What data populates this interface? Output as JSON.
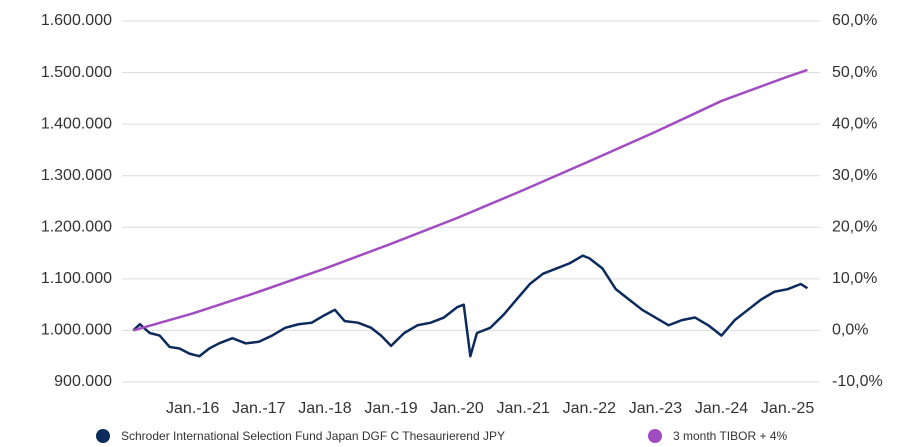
{
  "chart_data": {
    "type": "line",
    "xlim": [
      2014.93,
      2025.49
    ],
    "xticks": [
      {
        "value": 2016,
        "label": "Jan.-16"
      },
      {
        "value": 2017,
        "label": "Jan.-17"
      },
      {
        "value": 2018,
        "label": "Jan.-18"
      },
      {
        "value": 2019,
        "label": "Jan.-19"
      },
      {
        "value": 2020,
        "label": "Jan.-20"
      },
      {
        "value": 2021,
        "label": "Jan.-21"
      },
      {
        "value": 2022,
        "label": "Jan.-22"
      },
      {
        "value": 2023,
        "label": "Jan.-23"
      },
      {
        "value": 2024,
        "label": "Jan.-24"
      },
      {
        "value": 2025,
        "label": "Jan.-25"
      }
    ],
    "ylim": [
      900000,
      1600000
    ],
    "yticks": [
      {
        "value": 900000,
        "label": "900.000"
      },
      {
        "value": 1000000,
        "label": "1.000.000"
      },
      {
        "value": 1100000,
        "label": "1.100.000"
      },
      {
        "value": 1200000,
        "label": "1.200.000"
      },
      {
        "value": 1300000,
        "label": "1.300.000"
      },
      {
        "value": 1400000,
        "label": "1.400.000"
      },
      {
        "value": 1500000,
        "label": "1.500.000"
      },
      {
        "value": 1600000,
        "label": "1.600.000"
      }
    ],
    "y2lim": [
      -10,
      60
    ],
    "y2ticks": [
      {
        "value": -10,
        "label": "-10,0%"
      },
      {
        "value": 0,
        "label": "0,0%"
      },
      {
        "value": 10,
        "label": "10,0%"
      },
      {
        "value": 20,
        "label": "20,0%"
      },
      {
        "value": 30,
        "label": "30,0%"
      },
      {
        "value": 40,
        "label": "40,0%"
      },
      {
        "value": 50,
        "label": "50,0%"
      },
      {
        "value": 60,
        "label": "60,0%"
      }
    ],
    "grid": true,
    "legend": "bottom",
    "series": [
      {
        "name": "Schroder International Selection Fund Japan DGF C Thesaurierend JPY",
        "color": "#0d2a5c",
        "x": [
          2015.1,
          2015.2,
          2015.35,
          2015.5,
          2015.65,
          2015.8,
          2015.95,
          2016.1,
          2016.25,
          2016.4,
          2016.6,
          2016.8,
          2017.0,
          2017.2,
          2017.4,
          2017.6,
          2017.8,
          2018.0,
          2018.15,
          2018.3,
          2018.5,
          2018.7,
          2018.85,
          2019.0,
          2019.2,
          2019.4,
          2019.6,
          2019.8,
          2020.0,
          2020.1,
          2020.2,
          2020.3,
          2020.5,
          2020.7,
          2020.9,
          2021.1,
          2021.3,
          2021.5,
          2021.7,
          2021.9,
          2022.0,
          2022.2,
          2022.4,
          2022.6,
          2022.8,
          2023.0,
          2023.2,
          2023.4,
          2023.6,
          2023.8,
          2024.0,
          2024.2,
          2024.4,
          2024.6,
          2024.8,
          2025.0,
          2025.2,
          2025.3
        ],
        "values": [
          1000000,
          1012000,
          995000,
          990000,
          968000,
          965000,
          955000,
          950000,
          965000,
          975000,
          985000,
          975000,
          978000,
          990000,
          1005000,
          1012000,
          1015000,
          1030000,
          1040000,
          1018000,
          1015000,
          1005000,
          990000,
          970000,
          995000,
          1010000,
          1015000,
          1025000,
          1045000,
          1050000,
          950000,
          995000,
          1005000,
          1030000,
          1060000,
          1090000,
          1110000,
          1120000,
          1130000,
          1145000,
          1140000,
          1120000,
          1080000,
          1060000,
          1040000,
          1025000,
          1010000,
          1020000,
          1025000,
          1010000,
          990000,
          1020000,
          1040000,
          1060000,
          1075000,
          1080000,
          1090000,
          1082000
        ]
      },
      {
        "name": "3 month TIBOR + 4%",
        "color": "#a24cc2",
        "axis": "y2",
        "x": [
          2015.1,
          2016,
          2017,
          2018,
          2019,
          2020,
          2021,
          2022,
          2023,
          2024,
          2025,
          2025.3
        ],
        "values": [
          0,
          3.3,
          7.5,
          12,
          16.8,
          21.8,
          27.2,
          32.8,
          38.5,
          44.5,
          49.2,
          50.5
        ]
      }
    ]
  }
}
